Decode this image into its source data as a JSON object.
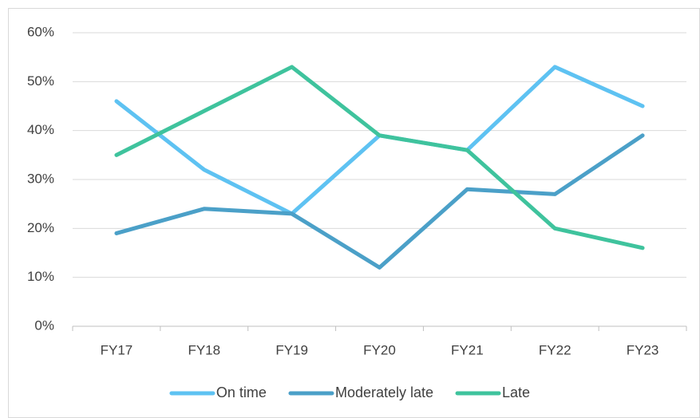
{
  "chart_data": {
    "type": "line",
    "categories": [
      "FY17",
      "FY18",
      "FY19",
      "FY20",
      "FY21",
      "FY22",
      "FY23"
    ],
    "series": [
      {
        "name": "On time",
        "color": "#5ec2f2",
        "values": [
          46,
          32,
          23,
          39,
          36,
          53,
          45
        ]
      },
      {
        "name": "Moderately late",
        "color": "#4ba0c8",
        "values": [
          19,
          24,
          23,
          12,
          28,
          27,
          39
        ]
      },
      {
        "name": "Late",
        "color": "#3fc39d",
        "values": [
          35,
          44,
          53,
          39,
          36,
          20,
          16
        ]
      }
    ],
    "ylim": [
      0,
      60
    ],
    "yticks": [
      {
        "value": 0,
        "label": "0%"
      },
      {
        "value": 10,
        "label": "10%"
      },
      {
        "value": 20,
        "label": "20%"
      },
      {
        "value": 30,
        "label": "30%"
      },
      {
        "value": 40,
        "label": "40%"
      },
      {
        "value": 50,
        "label": "50%"
      },
      {
        "value": 60,
        "label": "60%"
      }
    ],
    "grid": true,
    "legend": "bottom"
  }
}
